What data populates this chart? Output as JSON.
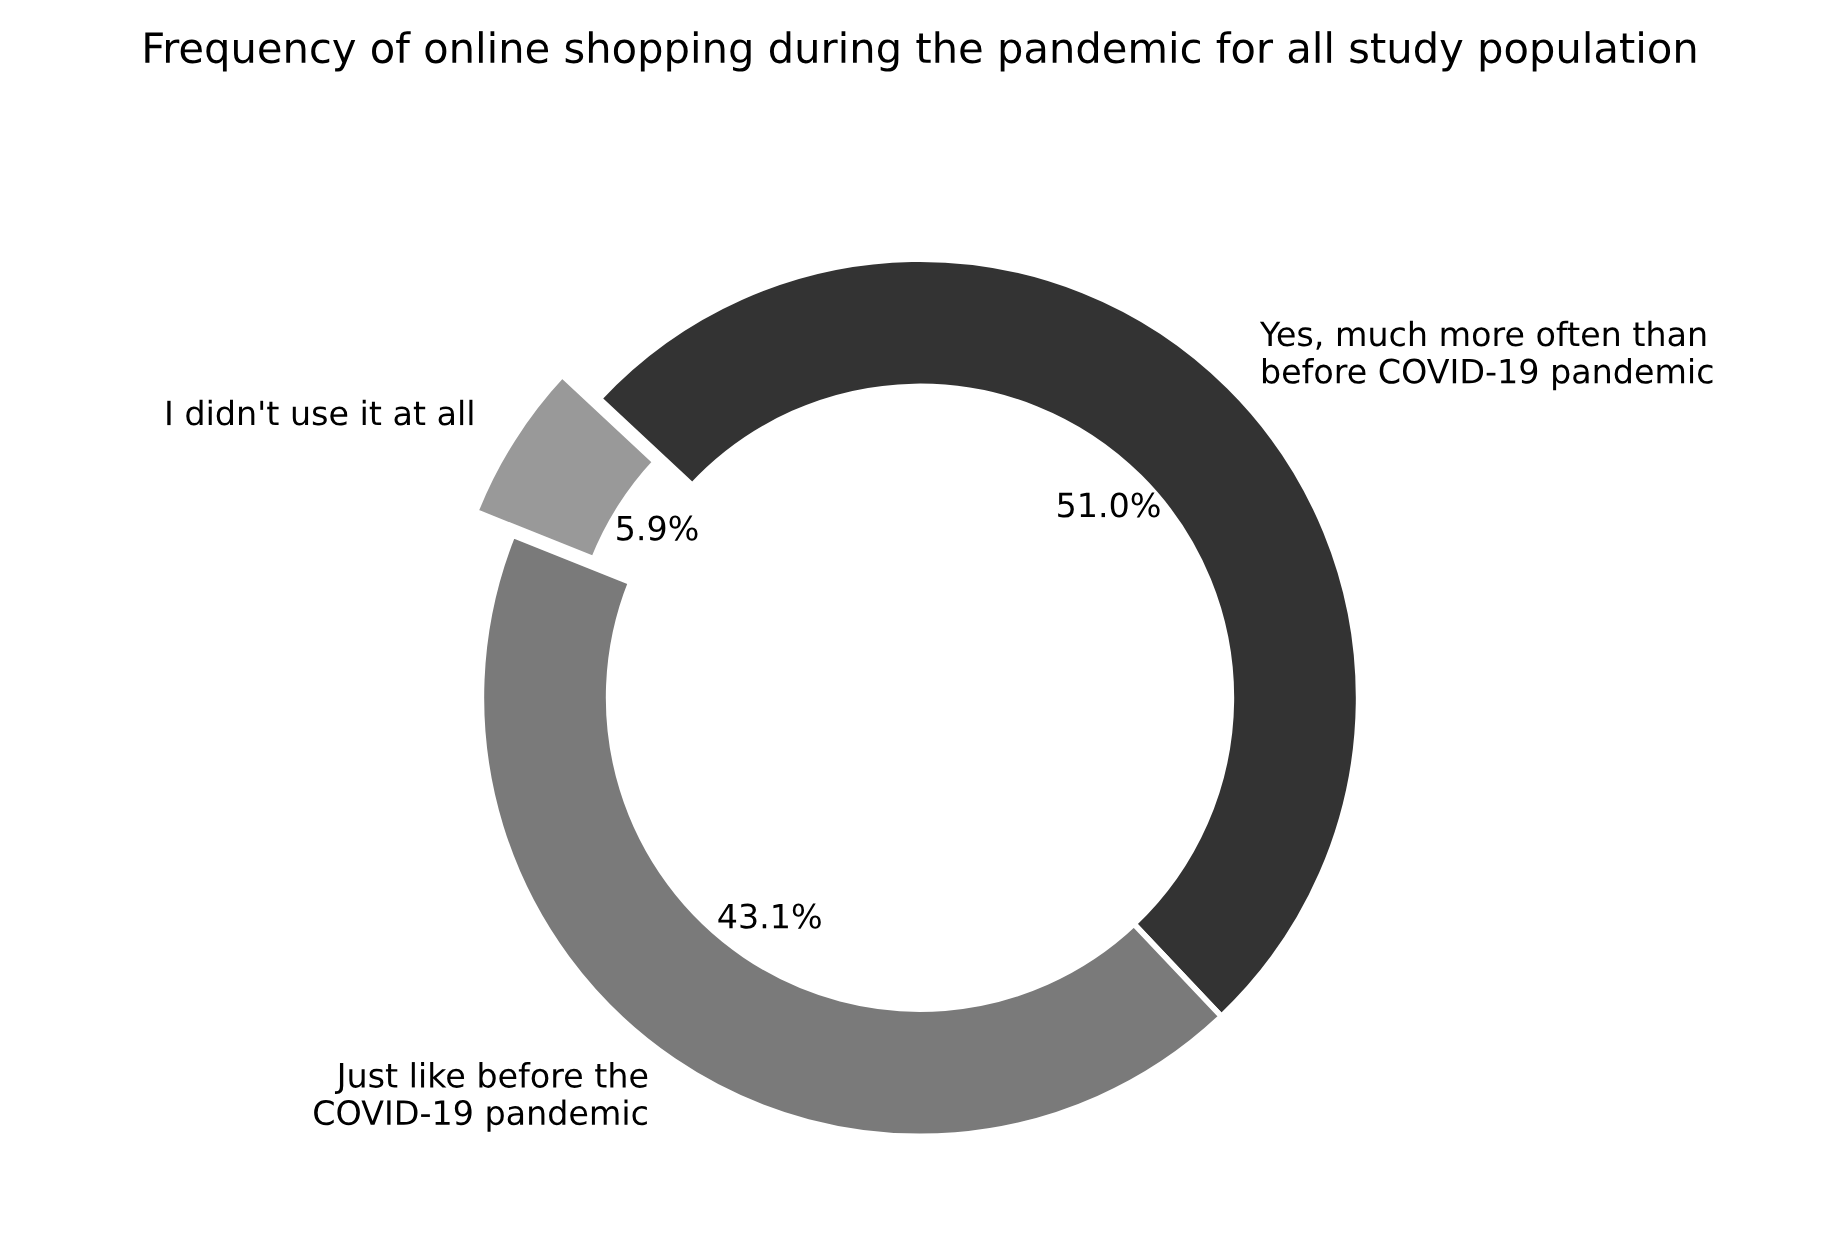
{
  "chart_data": {
    "type": "donut",
    "title": "Frequency of online shopping during the pandemic for all study population",
    "categories": [
      "Yes, much more often than\nbefore COVID-19 pandemic",
      "Just like before the\nCOVID-19 pandemic",
      "I didn't use it at all"
    ],
    "values": [
      51.0,
      43.1,
      5.9
    ],
    "value_labels": [
      "51.0%",
      "43.1%",
      "5.9%"
    ],
    "colors": [
      "#333333",
      "#7a7a7a",
      "#999999"
    ]
  }
}
